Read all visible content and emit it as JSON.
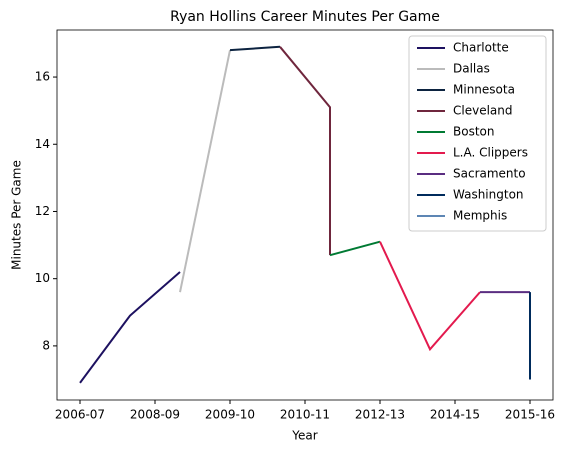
{
  "chart_data": {
    "type": "line",
    "title": "Ryan Hollins Career Minutes Per Game",
    "xlabel": "Year",
    "ylabel": "Minutes Per Game",
    "xlim": [
      2005.54,
      2015.46
    ],
    "ylim": [
      6.39,
      17.4
    ],
    "xticks": [
      {
        "value": 2006,
        "label": "2006-07"
      },
      {
        "value": 2007.5,
        "label": "2008-09"
      },
      {
        "value": 2009,
        "label": "2009-10"
      },
      {
        "value": 2010.5,
        "label": "2010-11"
      },
      {
        "value": 2012,
        "label": "2012-13"
      },
      {
        "value": 2013.5,
        "label": "2014-15"
      },
      {
        "value": 2015,
        "label": "2015-16"
      }
    ],
    "yticks": [
      8,
      10,
      12,
      14,
      16
    ],
    "legend": "upper right",
    "series": [
      {
        "name": "Charlotte",
        "color": "#1d1160",
        "x": [
          2006,
          2007,
          2008
        ],
        "values": [
          6.9,
          8.9,
          10.2
        ]
      },
      {
        "name": "Dallas",
        "color": "#bbbbbb",
        "x": [
          2008,
          2009
        ],
        "values": [
          9.6,
          16.8
        ]
      },
      {
        "name": "Minnesota",
        "color": "#0c2340",
        "x": [
          2009,
          2010
        ],
        "values": [
          16.8,
          16.9
        ]
      },
      {
        "name": "Cleveland",
        "color": "#6f263d",
        "x": [
          2010,
          2011,
          2011
        ],
        "values": [
          16.9,
          15.1,
          10.7
        ]
      },
      {
        "name": "Boston",
        "color": "#007a33",
        "x": [
          2011,
          2012
        ],
        "values": [
          10.7,
          11.1
        ]
      },
      {
        "name": "L.A. Clippers",
        "color": "#e31a4e",
        "x": [
          2012,
          2013,
          2014
        ],
        "values": [
          11.1,
          7.9,
          9.6
        ]
      },
      {
        "name": "Sacramento",
        "color": "#5a2d81",
        "x": [
          2014,
          2015
        ],
        "values": [
          9.6,
          9.6
        ]
      },
      {
        "name": "Washington",
        "color": "#002b5c",
        "x": [
          2015,
          2015
        ],
        "values": [
          9.6,
          7.0
        ]
      },
      {
        "name": "Memphis",
        "color": "#5d86b4",
        "x": [
          2015
        ],
        "values": [
          7.0
        ]
      }
    ]
  }
}
